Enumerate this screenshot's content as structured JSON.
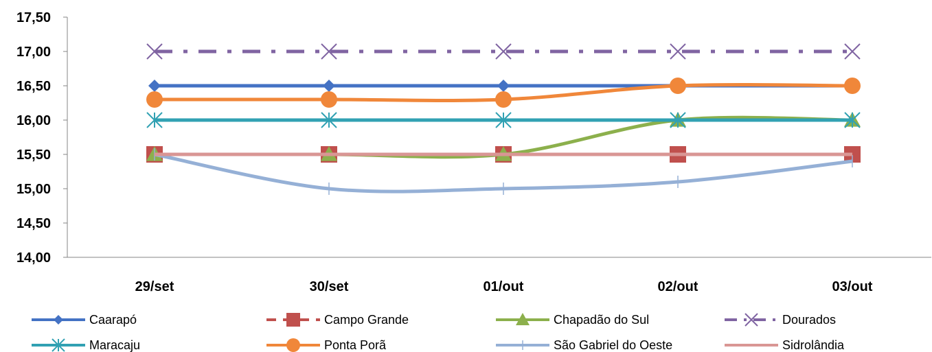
{
  "chart_data": {
    "type": "line",
    "title": "",
    "xlabel": "",
    "ylabel": "",
    "categories": [
      "29/set",
      "30/set",
      "01/out",
      "02/out",
      "03/out"
    ],
    "y_ticks": [
      "14,00",
      "14,50",
      "15,00",
      "15,50",
      "16,00",
      "16,50",
      "17,00",
      "17,50"
    ],
    "ylim": [
      14.0,
      17.5
    ],
    "grid": false,
    "legend_position": "bottom",
    "series": [
      {
        "name": "Caarapó",
        "values": [
          16.5,
          16.5,
          16.5,
          16.5,
          16.5
        ],
        "color": "#4472C4",
        "marker": "diamond",
        "dash": "solid",
        "smooth": false
      },
      {
        "name": "Campo Grande",
        "values": [
          15.5,
          15.5,
          15.5,
          15.5,
          15.5
        ],
        "color": "#C0504D",
        "marker": "square",
        "dash": "dash",
        "smooth": false
      },
      {
        "name": "Chapadão do Sul",
        "values": [
          15.5,
          15.5,
          15.5,
          16.0,
          16.0
        ],
        "color": "#8CB04C",
        "marker": "triangle",
        "dash": "solid",
        "smooth": true
      },
      {
        "name": "Dourados",
        "values": [
          17.0,
          17.0,
          17.0,
          17.0,
          17.0
        ],
        "color": "#8064A2",
        "marker": "x",
        "dash": "dashdot",
        "smooth": false
      },
      {
        "name": "Maracaju",
        "values": [
          16.0,
          16.0,
          16.0,
          16.0,
          16.0
        ],
        "color": "#31A1B3",
        "marker": "star",
        "dash": "solid",
        "smooth": false
      },
      {
        "name": "Ponta Porã",
        "values": [
          16.3,
          16.3,
          16.3,
          16.5,
          16.5
        ],
        "color": "#F0873A",
        "marker": "circle",
        "dash": "solid",
        "smooth": true
      },
      {
        "name": "São Gabriel do Oeste",
        "values": [
          15.5,
          15.0,
          15.0,
          15.1,
          15.4
        ],
        "color": "#95B0D6",
        "marker": "plus",
        "dash": "solid",
        "smooth": true
      },
      {
        "name": "Sidrolândia",
        "values": [
          15.5,
          15.5,
          15.5,
          15.5,
          15.5
        ],
        "color": "#D99694",
        "marker": "none",
        "dash": "solid",
        "smooth": false
      }
    ]
  }
}
